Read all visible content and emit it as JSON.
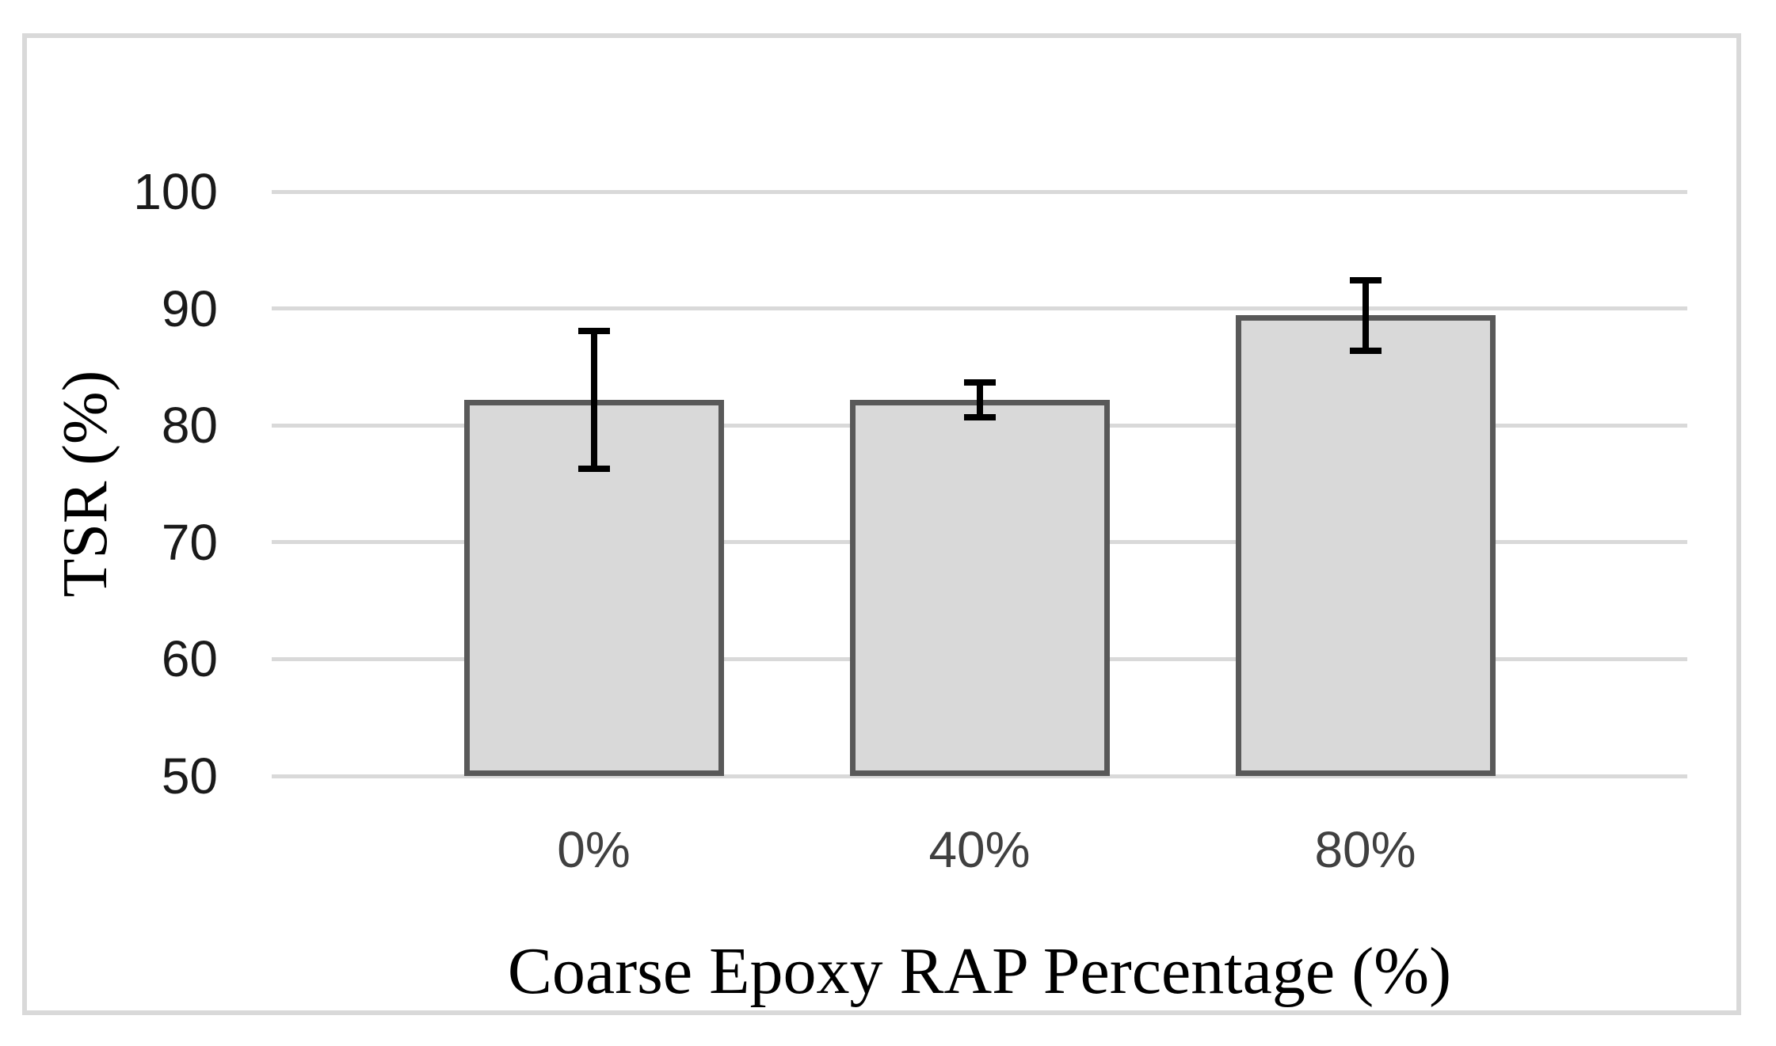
{
  "chart_data": {
    "type": "bar",
    "title": "",
    "xlabel": "Coarse Epoxy RAP Percentage (%)",
    "ylabel": "TSR (%)",
    "categories": [
      "0%",
      "40%",
      "80%"
    ],
    "values": [
      82.2,
      82.2,
      89.4
    ],
    "errors": [
      5.9,
      1.5,
      3.0
    ],
    "ylim": [
      50,
      100
    ],
    "yticks": [
      50,
      60,
      70,
      80,
      90,
      100
    ],
    "grid": true,
    "legend_position": "none",
    "colors": {
      "background": "#ffffff",
      "figure_border": "#d9d9d9",
      "gridline": "#d9d9d9",
      "bar_fill": "#d9d9d9",
      "bar_border": "#595959",
      "error_bar": "#000000",
      "y_tick_text": "#1a1a1a",
      "x_tick_text": "#404040",
      "axis_title_text": "#000000"
    }
  }
}
